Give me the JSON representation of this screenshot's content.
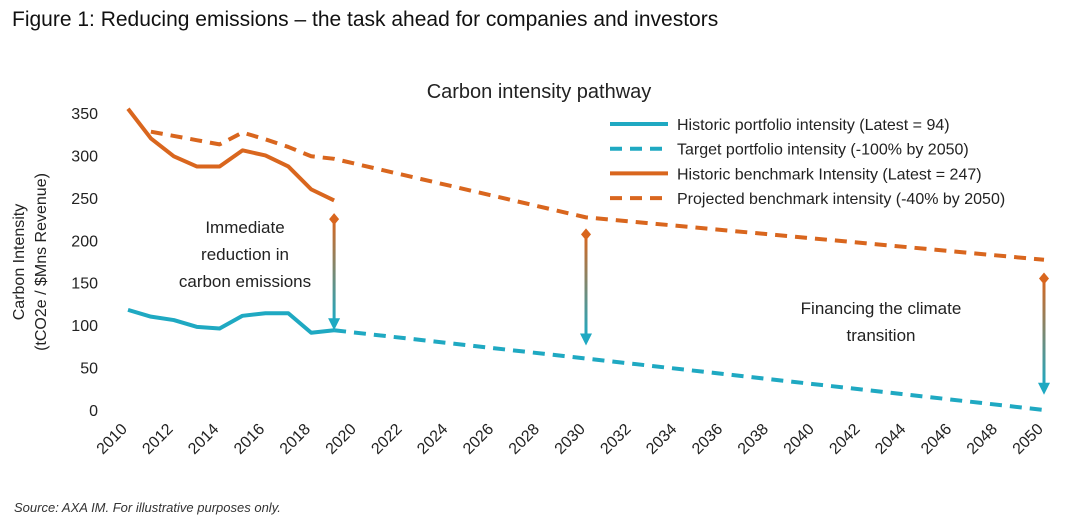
{
  "figure": {
    "title": "Figure 1: Reducing emissions – the task ahead for companies and investors",
    "source": "Source: AXA IM. For illustrative purposes only."
  },
  "chart_data": {
    "type": "line",
    "title": "Carbon intensity pathway",
    "ylabel_line1": "Carbon Intensity",
    "ylabel_line2": "(tCO2e / $Mns Revenue)",
    "xlabel": "",
    "xlim": [
      2010,
      2050
    ],
    "ylim": [
      0,
      350
    ],
    "yticks": [
      0,
      50,
      100,
      150,
      200,
      250,
      300,
      350
    ],
    "xticks": [
      2010,
      2012,
      2014,
      2016,
      2018,
      2020,
      2022,
      2024,
      2026,
      2028,
      2030,
      2032,
      2034,
      2036,
      2038,
      2040,
      2042,
      2044,
      2046,
      2048,
      2050
    ],
    "legend_position": "top-right",
    "colors": {
      "teal": "#1fa9c2",
      "orange": "#d9661e"
    },
    "series": [
      {
        "name": "Historic portfolio intensity (Latest = 94)",
        "color": "#1fa9c2",
        "dashed": false,
        "x": [
          2010,
          2011,
          2012,
          2013,
          2014,
          2015,
          2016,
          2017,
          2018,
          2019
        ],
        "values": [
          118,
          110,
          106,
          98,
          96,
          111,
          114,
          114,
          91,
          94
        ]
      },
      {
        "name": "Target portfolio intensity (-100% by 2050)",
        "color": "#1fa9c2",
        "dashed": true,
        "x": [
          2019,
          2050
        ],
        "values": [
          94,
          0
        ]
      },
      {
        "name": "Historic benchmark Intensity (Latest = 247)",
        "color": "#d9661e",
        "dashed": false,
        "x": [
          2010,
          2011,
          2012,
          2013,
          2014,
          2015,
          2016,
          2017,
          2018,
          2019
        ],
        "values": [
          355,
          320,
          299,
          287,
          287,
          306,
          300,
          287,
          260,
          247
        ]
      },
      {
        "name": "Projected benchmark intensity (-40% by 2050)",
        "color": "#d9661e",
        "dashed": true,
        "x": [
          2011,
          2012,
          2013,
          2014,
          2015,
          2016,
          2017,
          2018,
          2019,
          2030,
          2050
        ],
        "values": [
          328,
          323,
          318,
          313,
          327,
          319,
          310,
          299,
          296,
          227,
          177
        ]
      }
    ],
    "arrows": [
      {
        "x": 2019,
        "from": 225,
        "to": 94
      },
      {
        "x": 2030,
        "from": 207,
        "to": 76
      },
      {
        "x": 2050,
        "from": 155,
        "to": 18
      }
    ],
    "annotations": [
      {
        "id": "immediate",
        "lines": [
          "Immediate",
          "reduction in",
          "carbon emissions"
        ]
      },
      {
        "id": "financing",
        "lines": [
          "Financing the climate",
          "transition"
        ]
      }
    ]
  }
}
